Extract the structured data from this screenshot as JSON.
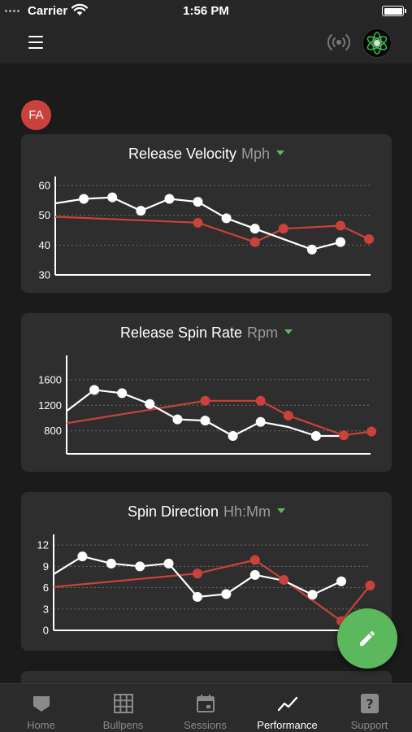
{
  "status_bar": {
    "carrier": "Carrier",
    "time": "1:56 PM"
  },
  "header": {
    "menu_icon": "menu-icon",
    "connection_icon": "broadcast-icon",
    "logo_icon": "app-logo-icon"
  },
  "avatar": {
    "initials": "FA",
    "color": "#c9423b"
  },
  "colors": {
    "accent": "#5cb85c",
    "series_red": "#c9423b",
    "series_white": "#ffffff",
    "card_bg": "#2e2e2e"
  },
  "cards": [
    {
      "title": "Release Velocity",
      "unit": "Mph",
      "chart_data": {
        "type": "line",
        "title": "Release Velocity",
        "unit": "Mph",
        "yticks": [
          30,
          40,
          50,
          60
        ],
        "ylim": [
          30,
          63
        ],
        "grid": true,
        "series": [
          {
            "color": "#ffffff",
            "x": [
              0,
              1,
              2,
              3,
              4,
              5,
              6,
              7,
              8,
              9,
              10
            ],
            "y": [
              54,
              55.5,
              56,
              51.5,
              55.5,
              54.5,
              49,
              45.5,
              null,
              38.5,
              41
            ]
          },
          {
            "color": "#c9423b",
            "x": [
              0,
              5,
              7,
              8,
              10,
              11
            ],
            "y": [
              49.5,
              47.5,
              41,
              45.5,
              46.5,
              42
            ]
          }
        ],
        "points": {
          "white": [
            1,
            2,
            3,
            4,
            5,
            6,
            7,
            9,
            10
          ],
          "red": [
            5,
            7,
            8,
            10,
            11
          ]
        }
      }
    },
    {
      "title": "Release Spin Rate",
      "unit": "Rpm",
      "chart_data": {
        "type": "line",
        "title": "Release Spin Rate",
        "unit": "Rpm",
        "yticks": [
          800,
          1200,
          1600
        ],
        "ylim": [
          440,
          1980
        ],
        "grid": true,
        "series": [
          {
            "color": "#ffffff",
            "x": [
              0,
              1,
              2,
              3,
              4,
              5,
              6,
              7,
              8,
              9,
              10
            ],
            "y": [
              1110,
              1440,
              1390,
              1220,
              980,
              960,
              720,
              940,
              860,
              720,
              720
            ]
          },
          {
            "color": "#c9423b",
            "x": [
              0,
              5,
              7,
              8,
              10,
              11
            ],
            "y": [
              920,
              1270,
              1270,
              1040,
              730,
              790
            ]
          }
        ],
        "points": {
          "white": [
            1,
            2,
            3,
            4,
            5,
            6,
            7,
            9
          ],
          "red": [
            5,
            7,
            8,
            10,
            11
          ]
        }
      }
    },
    {
      "title": "Spin Direction",
      "unit": "Hh:Mm",
      "chart_data": {
        "type": "line",
        "title": "Spin Direction",
        "unit": "Hh:Mm",
        "yticks": [
          0,
          3,
          6,
          9,
          12
        ],
        "ylim": [
          0,
          13.5
        ],
        "grid": true,
        "series": [
          {
            "color": "#ffffff",
            "x": [
              0,
              1,
              2,
              3,
              4,
              5,
              6,
              7,
              8,
              9,
              10
            ],
            "y": [
              7.9,
              10.4,
              9.4,
              9,
              9.4,
              4.7,
              5.1,
              7.8,
              7,
              5,
              6.9
            ]
          },
          {
            "color": "#c9423b",
            "x": [
              0,
              5,
              7,
              8,
              10,
              11
            ],
            "y": [
              6.1,
              8,
              9.9,
              7.1,
              1.3,
              6.3
            ]
          }
        ],
        "points": {
          "white": [
            1,
            2,
            3,
            4,
            5,
            6,
            7,
            9,
            10
          ],
          "red": [
            5,
            7,
            8,
            10,
            11
          ]
        }
      }
    }
  ],
  "fab": {
    "icon": "pencil-icon"
  },
  "tabs": [
    {
      "label": "Home",
      "icon": "home-icon",
      "active": false
    },
    {
      "label": "Bullpens",
      "icon": "grid-icon",
      "active": false
    },
    {
      "label": "Sessions",
      "icon": "calendar-icon",
      "active": false
    },
    {
      "label": "Performance",
      "icon": "trend-icon",
      "active": true
    },
    {
      "label": "Support",
      "icon": "help-icon",
      "active": false
    }
  ]
}
